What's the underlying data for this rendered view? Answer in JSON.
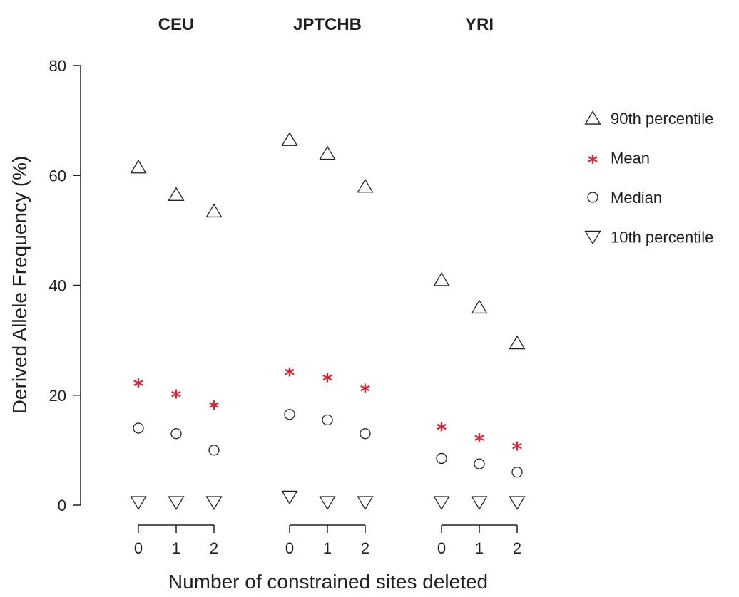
{
  "chart_data": {
    "type": "scatter",
    "ylabel": "Derived Allele Frequency (%)",
    "xlabel": "Number of constrained sites deleted",
    "ylim": [
      0,
      80
    ],
    "yticks": [
      "0",
      "20",
      "40",
      "60",
      "80"
    ],
    "groups": [
      {
        "name": "CEU",
        "categories": [
          "0",
          "1",
          "2"
        ]
      },
      {
        "name": "JPTCHB",
        "categories": [
          "0",
          "1",
          "2"
        ]
      },
      {
        "name": "YRI",
        "categories": [
          "0",
          "1",
          "2"
        ]
      }
    ],
    "series": [
      {
        "name": "90th percentile",
        "marker": "triangle-up",
        "color": "#231f20",
        "values": [
          [
            61.5,
            56.5,
            53.5
          ],
          [
            66.5,
            64,
            58
          ],
          [
            41,
            36,
            29.5
          ]
        ]
      },
      {
        "name": "Mean",
        "marker": "star",
        "color": "#e0222c",
        "values": [
          [
            22.5,
            20.5,
            18.5
          ],
          [
            24.5,
            23.5,
            21.5
          ],
          [
            14.5,
            12.5,
            11
          ]
        ]
      },
      {
        "name": "Median",
        "marker": "circle",
        "color": "#231f20",
        "values": [
          [
            14,
            13,
            10
          ],
          [
            16.5,
            15.5,
            13
          ],
          [
            8.5,
            7.5,
            6
          ]
        ]
      },
      {
        "name": "10th percentile",
        "marker": "triangle-down",
        "color": "#231f20",
        "values": [
          [
            0.5,
            0.5,
            0.5
          ],
          [
            1.5,
            0.5,
            0.5
          ],
          [
            0.5,
            0.5,
            0.5
          ]
        ]
      }
    ],
    "legend_position": "right"
  }
}
